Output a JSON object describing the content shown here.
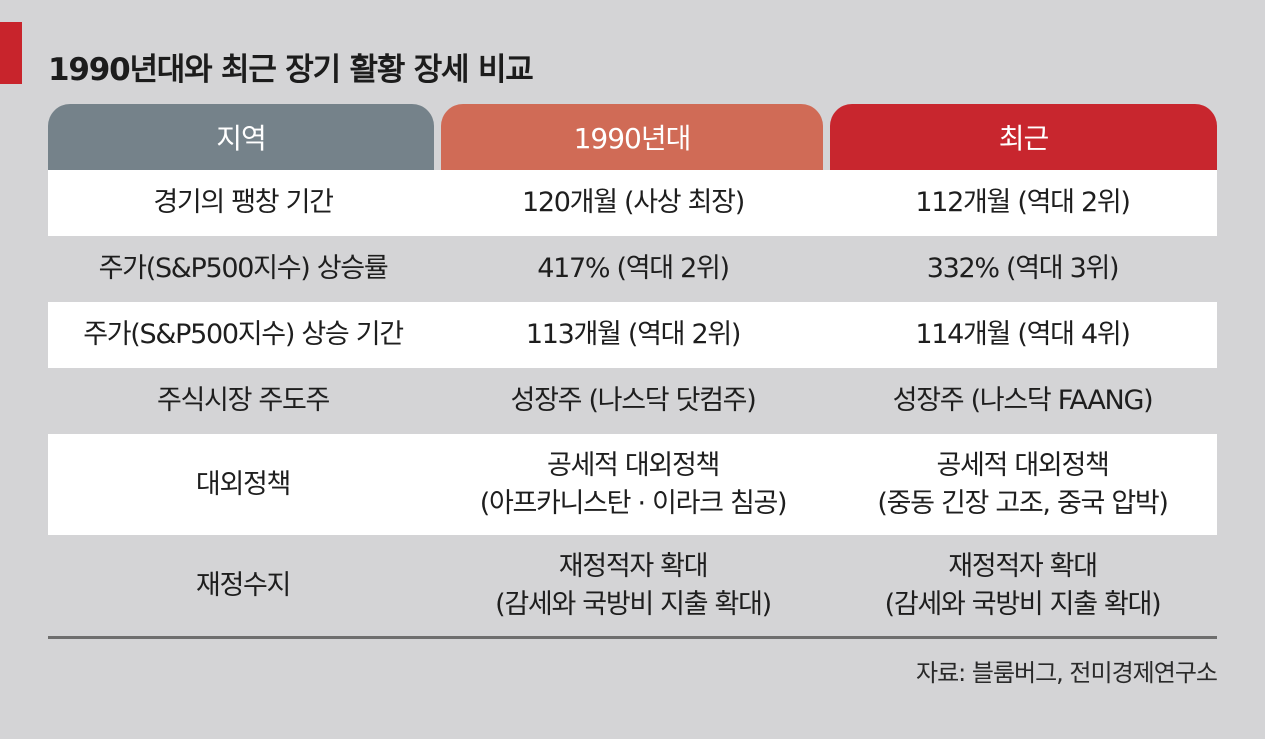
{
  "title": "1990년대와 최근 장기 활황 장세 비교",
  "colors": {
    "accent": "#c8242c",
    "header_region": "#75828a",
    "header_1990s": "#d06b56",
    "header_recent": "#c8262e",
    "background": "#d4d4d6",
    "row_white": "#ffffff"
  },
  "table": {
    "headers": [
      "지역",
      "1990년대",
      "최근"
    ],
    "rows": [
      {
        "label": [
          "경기의 팽창 기간"
        ],
        "col_1990s": [
          "120개월 (사상 최장)"
        ],
        "col_recent": [
          "112개월 (역대 2위)"
        ]
      },
      {
        "label": [
          "주가(S&P500지수) 상승률"
        ],
        "col_1990s": [
          "417% (역대 2위)"
        ],
        "col_recent": [
          "332% (역대 3위)"
        ]
      },
      {
        "label": [
          "주가(S&P500지수) 상승 기간"
        ],
        "col_1990s": [
          "113개월 (역대 2위)"
        ],
        "col_recent": [
          "114개월 (역대 4위)"
        ]
      },
      {
        "label": [
          "주식시장 주도주"
        ],
        "col_1990s": [
          "성장주 (나스닥 닷컴주)"
        ],
        "col_recent": [
          "성장주 (나스닥 FAANG)"
        ]
      },
      {
        "label": [
          "대외정책"
        ],
        "col_1990s": [
          "공세적 대외정책",
          "(아프카니스탄 · 이라크 침공)"
        ],
        "col_recent": [
          "공세적 대외정책",
          "(중동 긴장 고조, 중국 압박)"
        ]
      },
      {
        "label": [
          "재정수지"
        ],
        "col_1990s": [
          "재정적자 확대",
          "(감세와 국방비 지출 확대)"
        ],
        "col_recent": [
          "재정적자 확대",
          "(감세와 국방비 지출 확대)"
        ]
      }
    ]
  },
  "source": "자료: 블룸버그, 전미경제연구소"
}
